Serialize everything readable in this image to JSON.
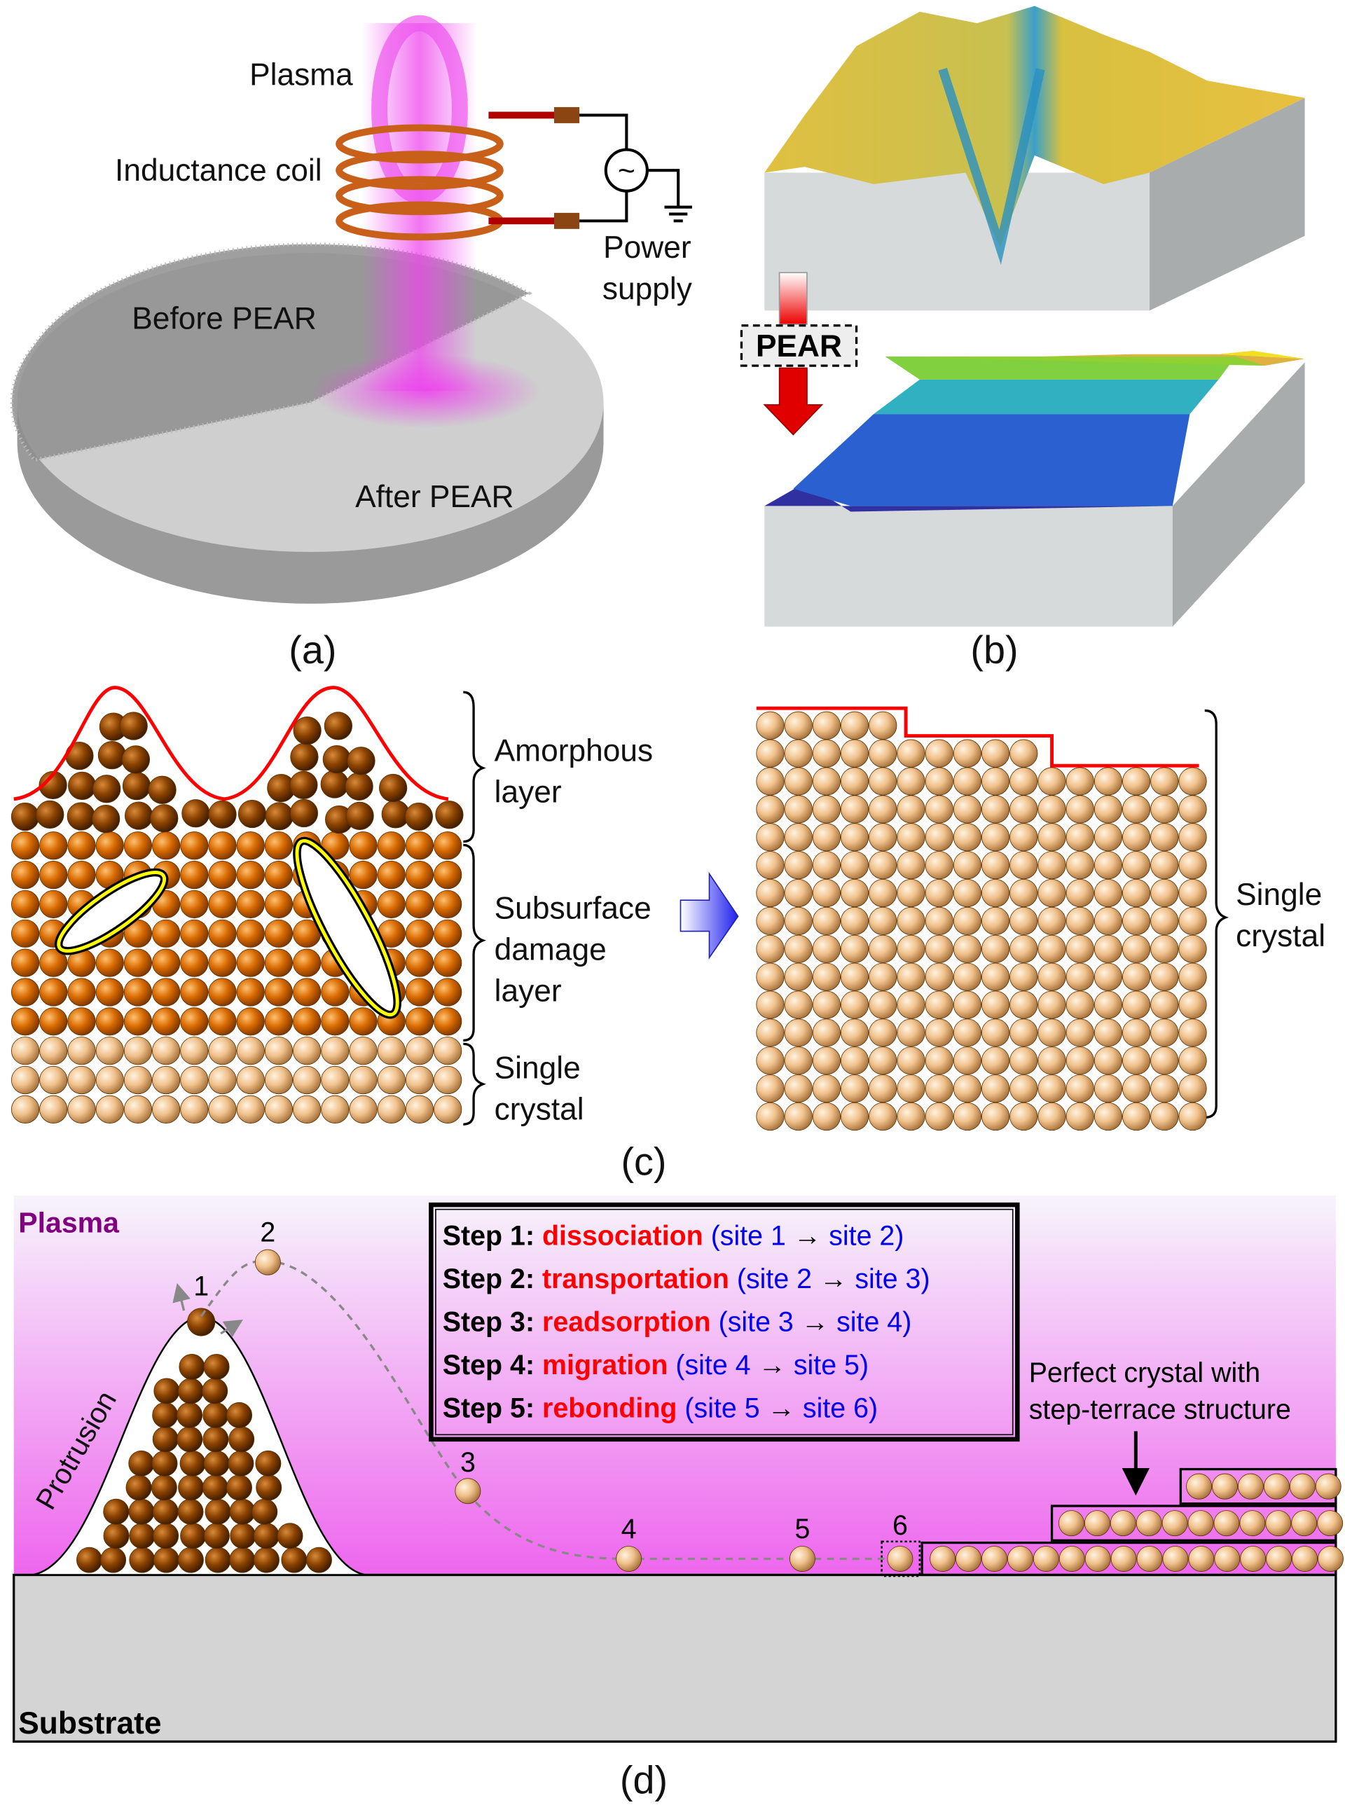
{
  "panel_a": {
    "caption": "(a)",
    "plasma": "Plasma",
    "coil": "Inductance coil",
    "power_supply": [
      "Power",
      "supply"
    ],
    "before": "Before PEAR",
    "after": "After PEAR",
    "ac_symbol": "~"
  },
  "panel_b": {
    "caption": "(b)",
    "process": "PEAR"
  },
  "panel_c": {
    "caption": "(c)",
    "amorphous": [
      "Amorphous",
      "layer"
    ],
    "subsurface": [
      "Subsurface",
      "damage",
      "layer"
    ],
    "single_left": [
      "Single",
      "crystal"
    ],
    "single_right": [
      "Single",
      "crystal"
    ]
  },
  "panel_d": {
    "caption": "(d)",
    "plasma": "Plasma",
    "protrusion": "Protrusion",
    "substrate": "Substrate",
    "perfect": [
      "Perfect crystal with",
      "step-terrace structure"
    ],
    "sites": [
      "1",
      "2",
      "3",
      "4",
      "5",
      "6"
    ],
    "steps": [
      {
        "label": "Step 1:",
        "name": "dissociation",
        "from": "(site 1",
        "to": "site 2)"
      },
      {
        "label": "Step 2:",
        "name": "transportation",
        "from": "(site 2",
        "to": "site 3)"
      },
      {
        "label": "Step 3:",
        "name": "readsorption",
        "from": "(site 3",
        "to": "site 4)"
      },
      {
        "label": "Step 4:",
        "name": "migration",
        "from": "(site 4",
        "to": "site 5)"
      },
      {
        "label": "Step 5:",
        "name": "rebonding",
        "from": "(site 5",
        "to": "site 6)"
      }
    ]
  },
  "colors": {
    "plasma": "#ee44ee",
    "dark_atom": "#8a4200",
    "orange_atom": "#d86a00",
    "crystal_atom": "#f0c08a",
    "surface_line": "#ff0000",
    "step_name": "#ff0000",
    "site_text": "#0000ee"
  }
}
